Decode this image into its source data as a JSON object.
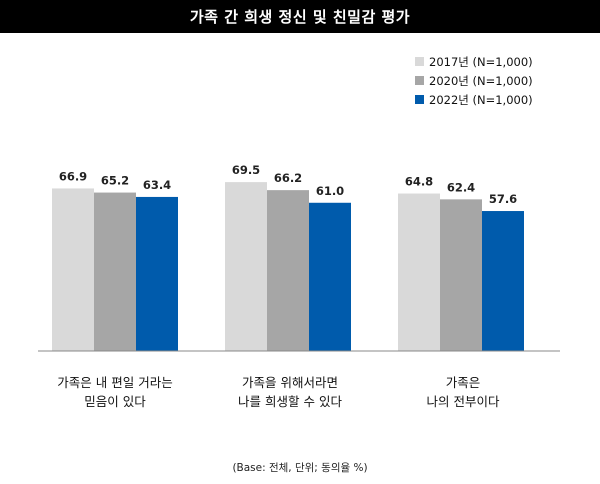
{
  "chart_data": {
    "type": "bar",
    "title": "가족 간 희생 정신 및 친밀감 평가",
    "categories": [
      [
        "가족은 내 편일 거라는",
        "믿음이 있다"
      ],
      [
        "가족을 위해서라면",
        "나를 희생할 수 있다"
      ],
      [
        "가족은",
        "나의 전부이다"
      ]
    ],
    "series": [
      {
        "name": "2017년 (N=1,000)",
        "color": "#d9d9d9",
        "values": [
          66.9,
          69.5,
          64.8
        ]
      },
      {
        "name": "2020년 (N=1,000)",
        "color": "#a6a6a6",
        "values": [
          65.2,
          66.2,
          62.4
        ]
      },
      {
        "name": "2022년 (N=1,000)",
        "color": "#005bac",
        "values": [
          63.4,
          61.0,
          57.6
        ]
      }
    ],
    "ylim": [
      0,
      100
    ],
    "grid": false,
    "legend_position": "top-right",
    "footnote": "(Base: 전체, 단위; 동의율 %)"
  }
}
